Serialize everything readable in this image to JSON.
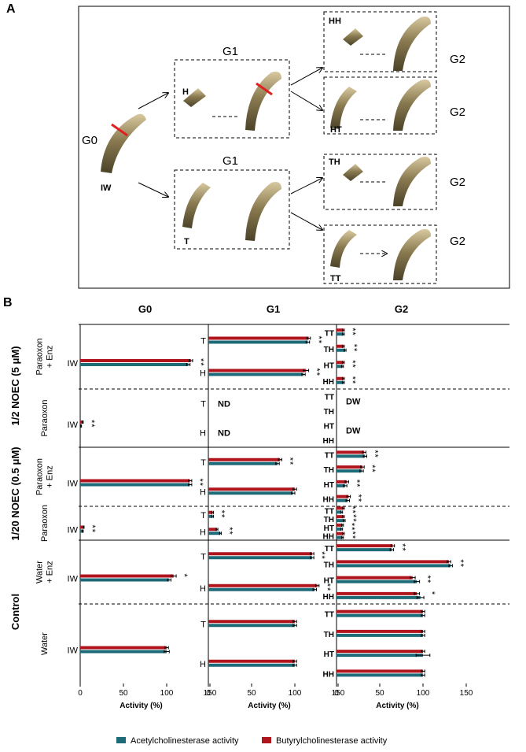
{
  "panel_a": {
    "label": "A",
    "g0": "G0",
    "iw": "IW",
    "g1": [
      "G1",
      "G1"
    ],
    "h": "H",
    "t": "T",
    "g2": [
      "G2",
      "G2",
      "G2",
      "G2"
    ],
    "boxes": [
      "HH",
      "HT",
      "TH",
      "TT"
    ]
  },
  "panel_b": {
    "label": "B",
    "groups": [
      {
        "label": "1/2 NOEC (5 μM)",
        "rows": [
          [
            "Paraoxon",
            "+ Enz"
          ],
          [
            "Paraoxon"
          ]
        ]
      },
      {
        "label": "1/20 NOEC (0.5 μM)",
        "rows": [
          [
            "Paraoxon",
            "+ Enz"
          ],
          [
            "Paraoxon"
          ]
        ]
      },
      {
        "label": "Control",
        "rows": [
          [
            "Water",
            "+ Enz"
          ],
          [
            "Water"
          ]
        ]
      }
    ]
  },
  "legend": [
    {
      "name": "Acetylcholinesterase activity",
      "color": "#1d6a78"
    },
    {
      "name": "Butyrylcholinesterase activity",
      "color": "#b0141c"
    }
  ],
  "chart_data": [
    {
      "type": "bar",
      "orientation": "horizontal",
      "title": "G0",
      "xlabel": "Activity (%)",
      "xlim": [
        0,
        150
      ],
      "xticks": [
        0,
        50,
        100,
        150
      ],
      "panels": [
        {
          "categories": [
            "IW"
          ],
          "series": [
            {
              "values": [
                125
              ],
              "errors": [
                2
              ]
            },
            {
              "values": [
                128
              ],
              "errors": [
                2
              ]
            }
          ],
          "annotations": [
            "**"
          ]
        },
        {
          "categories": [
            "IW"
          ],
          "series": [
            {
              "values": [
                1
              ],
              "errors": [
                0.5
              ]
            },
            {
              "values": [
                3
              ],
              "errors": [
                0.5
              ]
            }
          ],
          "annotations": [
            "**"
          ]
        },
        {
          "categories": [
            "IW"
          ],
          "series": [
            {
              "values": [
                127
              ],
              "errors": [
                2
              ]
            },
            {
              "values": [
                127
              ],
              "errors": [
                2
              ]
            }
          ],
          "annotations": [
            "**"
          ]
        },
        {
          "categories": [
            "IW"
          ],
          "series": [
            {
              "values": [
                3
              ],
              "errors": [
                0.5
              ]
            },
            {
              "values": [
                4
              ],
              "errors": [
                0.5
              ]
            }
          ],
          "annotations": [
            "**"
          ]
        },
        {
          "categories": [
            "IW"
          ],
          "series": [
            {
              "values": [
                103
              ],
              "errors": [
                2
              ]
            },
            {
              "values": [
                108
              ],
              "errors": [
                3
              ]
            }
          ],
          "annotations": [
            "*"
          ]
        },
        {
          "categories": [
            "IW"
          ],
          "series": [
            {
              "values": [
                100
              ],
              "errors": [
                3
              ]
            },
            {
              "values": [
                100
              ],
              "errors": [
                2
              ]
            }
          ],
          "annotations": [
            null
          ]
        }
      ]
    },
    {
      "type": "bar",
      "orientation": "horizontal",
      "title": "G1",
      "xlabel": "Activity (%)",
      "xlim": [
        0,
        150
      ],
      "xticks": [
        0,
        50,
        100,
        150
      ],
      "panels": [
        {
          "categories": [
            "T",
            "H"
          ],
          "series": [
            {
              "values": [
                115,
                110
              ],
              "errors": [
                2,
                2
              ]
            },
            {
              "values": [
                116,
                113
              ],
              "errors": [
                2,
                3
              ]
            }
          ],
          "annotations": [
            "**",
            "**"
          ]
        },
        {
          "categories": [
            "T",
            "H"
          ],
          "series": [
            {
              "values": [
                null,
                null
              ],
              "errors": [
                null,
                null
              ]
            },
            {
              "values": [
                null,
                null
              ],
              "errors": [
                null,
                null
              ]
            }
          ],
          "annotations": [
            null,
            null
          ],
          "notes": [
            "ND",
            "ND"
          ]
        },
        {
          "categories": [
            "T",
            "H"
          ],
          "series": [
            {
              "values": [
                80,
                98
              ],
              "errors": [
                2,
                2
              ]
            },
            {
              "values": [
                83,
                100
              ],
              "errors": [
                2,
                2
              ]
            }
          ],
          "annotations": [
            "**",
            null
          ]
        },
        {
          "categories": [
            "T",
            "H"
          ],
          "series": [
            {
              "values": [
                5,
                14
              ],
              "errors": [
                1,
                1
              ]
            },
            {
              "values": [
                5,
                10
              ],
              "errors": [
                1,
                1
              ]
            }
          ],
          "annotations": [
            "**",
            "**"
          ]
        },
        {
          "categories": [
            "T",
            "H"
          ],
          "series": [
            {
              "values": [
                120,
                123
              ],
              "errors": [
                2,
                2
              ]
            },
            {
              "values": [
                120,
                126
              ],
              "errors": [
                2,
                2
              ]
            }
          ],
          "annotations": [
            "**",
            "**"
          ]
        },
        {
          "categories": [
            "T",
            "H"
          ],
          "series": [
            {
              "values": [
                100,
                100
              ],
              "errors": [
                2,
                2
              ]
            },
            {
              "values": [
                100,
                100
              ],
              "errors": [
                2,
                2
              ]
            }
          ],
          "annotations": [
            null,
            null
          ]
        }
      ]
    },
    {
      "type": "bar",
      "orientation": "horizontal",
      "title": "G2",
      "xlabel": "Activity (%)",
      "xlim": [
        0,
        150
      ],
      "xticks": [
        0,
        50,
        100,
        150
      ],
      "panels": [
        {
          "categories": [
            "TT",
            "TH",
            "HT",
            "HH"
          ],
          "series": [
            {
              "values": [
                8,
                10,
                7,
                8
              ],
              "errors": [
                1,
                1,
                1,
                1
              ]
            },
            {
              "values": [
                8,
                8,
                8,
                8
              ],
              "errors": [
                1,
                1,
                1,
                1
              ]
            }
          ],
          "annotations": [
            "**",
            "**",
            "**",
            "**"
          ]
        },
        {
          "categories": [
            "TT",
            "TH",
            "HT",
            "HH"
          ],
          "series": [
            {
              "values": [
                null,
                null,
                null,
                null
              ],
              "errors": [
                null,
                null,
                null,
                null
              ]
            },
            {
              "values": [
                null,
                null,
                null,
                null
              ],
              "errors": [
                null,
                null,
                null,
                null
              ]
            }
          ],
          "annotations": [
            null,
            null,
            null,
            null
          ],
          "notes": [
            "DW",
            null,
            "DW",
            null
          ]
        },
        {
          "categories": [
            "TT",
            "TH",
            "HT",
            "HH"
          ],
          "series": [
            {
              "values": [
                33,
                29,
                10,
                13
              ],
              "errors": [
                2,
                2,
                2,
                2
              ]
            },
            {
              "values": [
                32,
                30,
                12,
                14
              ],
              "errors": [
                2,
                2,
                2,
                2
              ]
            }
          ],
          "annotations": [
            "**",
            "**",
            "**",
            "**"
          ]
        },
        {
          "categories": [
            "TT",
            "TH",
            "HT",
            "HH"
          ],
          "series": [
            {
              "values": [
                6,
                9,
                6,
                7
              ],
              "errors": [
                1,
                1,
                1,
                1
              ]
            },
            {
              "values": [
                8,
                8,
                7,
                8
              ],
              "errors": [
                1,
                1,
                1,
                1
              ]
            }
          ],
          "annotations": [
            "**",
            "**",
            "**",
            "**"
          ]
        },
        {
          "categories": [
            "TT",
            "TH",
            "HT",
            "HH"
          ],
          "series": [
            {
              "values": [
                64,
                132,
                93,
                97
              ],
              "errors": [
                2,
                2,
                3,
                4
              ]
            },
            {
              "values": [
                65,
                130,
                88,
                93
              ],
              "errors": [
                2,
                2,
                3,
                3
              ]
            }
          ],
          "annotations": [
            "**",
            "**",
            "**",
            "*"
          ]
        },
        {
          "categories": [
            "TT",
            "TH",
            "HT",
            "HH"
          ],
          "series": [
            {
              "values": [
                100,
                100,
                100,
                100
              ],
              "errors": [
                2,
                2,
                8,
                2
              ]
            },
            {
              "values": [
                100,
                100,
                100,
                100
              ],
              "errors": [
                2,
                2,
                2,
                2
              ]
            }
          ],
          "annotations": [
            null,
            null,
            null,
            null
          ]
        }
      ]
    }
  ]
}
